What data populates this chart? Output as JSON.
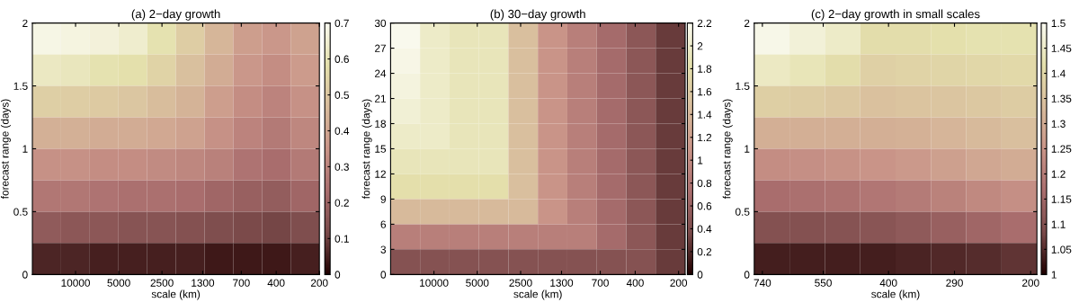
{
  "chart_data": [
    {
      "type": "heatmap",
      "title": "(a) 2−day growth",
      "xlabel": "scale (km)",
      "ylabel": "forecast range (days)",
      "log": "x",
      "xlim": [
        20000,
        200
      ],
      "xticks": [
        10000,
        5000,
        2500,
        1300,
        700,
        400,
        200
      ],
      "ylim": [
        0,
        2
      ],
      "yticks": [
        0,
        0.5,
        1,
        1.5,
        2
      ],
      "clim": [
        0,
        0.7
      ],
      "cticks": [
        0,
        0.1,
        0.2,
        0.3,
        0.4,
        0.5,
        0.6,
        0.7
      ],
      "cells": [
        [
          0.68,
          0.67,
          0.66,
          0.64,
          0.59,
          0.52,
          0.45,
          0.38,
          0.36,
          0.39
        ],
        [
          0.62,
          0.61,
          0.59,
          0.58,
          0.54,
          0.48,
          0.42,
          0.36,
          0.33,
          0.37
        ],
        [
          0.53,
          0.52,
          0.51,
          0.5,
          0.47,
          0.44,
          0.38,
          0.33,
          0.3,
          0.34
        ],
        [
          0.43,
          0.43,
          0.42,
          0.42,
          0.41,
          0.39,
          0.34,
          0.3,
          0.27,
          0.31
        ],
        [
          0.34,
          0.34,
          0.33,
          0.33,
          0.32,
          0.31,
          0.29,
          0.25,
          0.23,
          0.27
        ],
        [
          0.26,
          0.26,
          0.25,
          0.24,
          0.24,
          0.23,
          0.21,
          0.19,
          0.18,
          0.21
        ],
        [
          0.17,
          0.16,
          0.16,
          0.15,
          0.15,
          0.14,
          0.13,
          0.12,
          0.11,
          0.13
        ],
        [
          0.06,
          0.06,
          0.05,
          0.05,
          0.05,
          0.05,
          0.04,
          0.04,
          0.04,
          0.05
        ]
      ]
    },
    {
      "type": "heatmap",
      "title": "(b) 30−day growth",
      "xlabel": "scale (km)",
      "ylabel": "forecast range (days)",
      "log": "x",
      "xlim": [
        20000,
        180
      ],
      "xticks": [
        10000,
        5000,
        2500,
        1300,
        700,
        400,
        200
      ],
      "ylim": [
        0,
        30
      ],
      "yticks": [
        0,
        3,
        6,
        9,
        12,
        15,
        18,
        21,
        24,
        27,
        30
      ],
      "clim": [
        0,
        2.2
      ],
      "cticks": [
        0,
        0.2,
        0.4,
        0.6,
        0.8,
        1,
        1.2,
        1.4,
        1.6,
        1.8,
        2,
        2.2
      ],
      "cells": [
        [
          2.18,
          1.98,
          1.9,
          1.9,
          1.5,
          1.1,
          0.9,
          0.7,
          0.5,
          0.3
        ],
        [
          2.14,
          1.98,
          1.9,
          1.9,
          1.5,
          1.1,
          0.9,
          0.7,
          0.5,
          0.3
        ],
        [
          2.1,
          1.98,
          1.9,
          1.9,
          1.5,
          1.1,
          0.9,
          0.7,
          0.5,
          0.3
        ],
        [
          2.05,
          1.98,
          1.9,
          1.9,
          1.5,
          1.1,
          0.9,
          0.7,
          0.5,
          0.3
        ],
        [
          1.98,
          1.98,
          1.9,
          1.9,
          1.5,
          1.1,
          0.9,
          0.7,
          0.5,
          0.3
        ],
        [
          1.9,
          1.9,
          1.9,
          1.9,
          1.5,
          1.1,
          0.9,
          0.7,
          0.5,
          0.3
        ],
        [
          1.82,
          1.82,
          1.82,
          1.82,
          1.5,
          1.1,
          0.9,
          0.7,
          0.5,
          0.3
        ],
        [
          1.45,
          1.45,
          1.45,
          1.45,
          1.45,
          1.1,
          0.9,
          0.7,
          0.5,
          0.3
        ],
        [
          0.9,
          0.9,
          0.9,
          0.9,
          0.9,
          0.9,
          0.9,
          0.7,
          0.5,
          0.3
        ],
        [
          0.45,
          0.45,
          0.45,
          0.45,
          0.45,
          0.45,
          0.45,
          0.45,
          0.45,
          0.3
        ]
      ]
    },
    {
      "type": "heatmap",
      "title": "(c) 2−day growth in small scales",
      "xlabel": "scale (km)",
      "ylabel": "forecast range (days)",
      "log": "x",
      "xlim": [
        770,
        194
      ],
      "xticks": [
        740,
        550,
        400,
        290,
        200
      ],
      "ylim": [
        0,
        2
      ],
      "yticks": [
        0,
        0.5,
        1,
        1.5,
        2
      ],
      "clim": [
        1,
        1.5
      ],
      "cticks": [
        1,
        1.05,
        1.1,
        1.15,
        1.2,
        1.25,
        1.3,
        1.35,
        1.4,
        1.45,
        1.5
      ],
      "cells": [
        [
          1.49,
          1.47,
          1.45,
          1.41,
          1.41,
          1.415,
          1.42,
          1.42
        ],
        [
          1.445,
          1.43,
          1.41,
          1.38,
          1.385,
          1.39,
          1.395,
          1.4
        ],
        [
          1.375,
          1.37,
          1.36,
          1.345,
          1.35,
          1.355,
          1.36,
          1.37
        ],
        [
          1.305,
          1.305,
          1.305,
          1.305,
          1.31,
          1.32,
          1.33,
          1.34
        ],
        [
          1.235,
          1.24,
          1.245,
          1.25,
          1.26,
          1.275,
          1.29,
          1.3
        ],
        [
          1.165,
          1.17,
          1.175,
          1.185,
          1.195,
          1.21,
          1.225,
          1.24
        ],
        [
          1.1,
          1.1,
          1.105,
          1.11,
          1.12,
          1.135,
          1.15,
          1.165
        ],
        [
          1.035,
          1.035,
          1.035,
          1.035,
          1.04,
          1.045,
          1.05,
          1.06
        ]
      ]
    }
  ]
}
